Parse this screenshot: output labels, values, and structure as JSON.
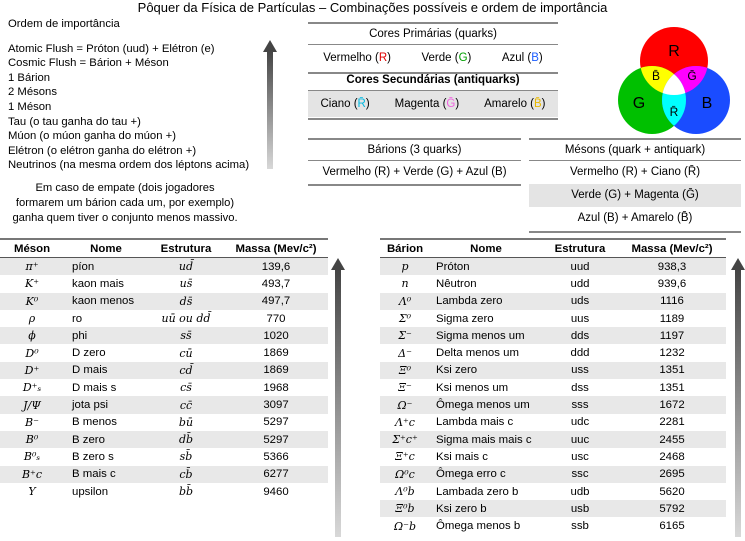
{
  "title": "Pôquer da Física de Partículas – Combinações possíveis e ordem de importância",
  "ranking": {
    "heading": "Ordem de importância",
    "items": [
      "Atomic Flush = Próton (uud) + Elétron (e)",
      "Cosmic Flush = Bárion + Méson",
      "1 Bárion",
      "2 Mésons",
      "1 Méson",
      "Tau (o tau ganha do tau +)",
      "Múon (o múon ganha do múon +)",
      "Elétron (o elétron ganha do elétron +)",
      "Neutrinos (na mesma ordem dos léptons acima)"
    ],
    "tie_note": "Em caso de empate (dois jogadores formarem um bárion cada um, por exemplo) ganha quem tiver o conjunto menos massivo."
  },
  "primary": {
    "title": "Cores Primárias (quarks)",
    "items": [
      {
        "name": "Vermelho",
        "code": "R"
      },
      {
        "name": "Verde",
        "code": "G"
      },
      {
        "name": "Azul",
        "code": "B"
      }
    ]
  },
  "secondary": {
    "title": "Cores Secundárias (antiquarks)",
    "items": [
      {
        "name": "Ciano",
        "code": "R̄"
      },
      {
        "name": "Magenta",
        "code": "Ḡ"
      },
      {
        "name": "Amarelo",
        "code": "B̄"
      }
    ]
  },
  "colors": {
    "red": "#ff0000",
    "green": "#00c000",
    "blue": "#1a4cff",
    "cyan": "#00ffff",
    "magenta": "#ff00ff",
    "yellow": "#ffff00"
  },
  "venn": {
    "r": "R",
    "g": "G",
    "b": "B",
    "rbar": "R̄",
    "gbar": "Ḡ",
    "bbar": "B̄"
  },
  "baryon_combo": {
    "title": "Bárions (3 quarks)",
    "combo": "Vermelho (R) + Verde (G) + Azul (B)"
  },
  "meson_combo": {
    "title": "Mésons (quark + antiquark)",
    "combos": [
      "Vermelho (R) + Ciano (R̄)",
      "Verde (G) + Magenta (Ḡ)",
      "Azul (B) + Amarelo (B̄)"
    ]
  },
  "mesons": {
    "headers": [
      "Méson",
      "Nome",
      "Estrutura",
      "Massa (Mev/c²)"
    ],
    "rows": [
      {
        "sym": "π⁺",
        "name": "píon",
        "str": "ud̄",
        "mass": "139,6"
      },
      {
        "sym": "K⁺",
        "name": "kaon mais",
        "str": "us̄",
        "mass": "493,7"
      },
      {
        "sym": "K⁰",
        "name": "kaon menos",
        "str": "ds̄",
        "mass": "497,7"
      },
      {
        "sym": "ρ",
        "name": "ro",
        "str": "uū ou dd̄",
        "mass": "770"
      },
      {
        "sym": "ϕ",
        "name": "phi",
        "str": "ss̄",
        "mass": "1020"
      },
      {
        "sym": "D⁰",
        "name": "D zero",
        "str": "cū",
        "mass": "1869"
      },
      {
        "sym": "D⁺",
        "name": "D mais",
        "str": "cd̄",
        "mass": "1869"
      },
      {
        "sym": "D⁺ₛ",
        "name": "D mais s",
        "str": "cs̄",
        "mass": "1968"
      },
      {
        "sym": "J/Ψ",
        "name": "jota psi",
        "str": "cc̄",
        "mass": "3097"
      },
      {
        "sym": "B⁻",
        "name": "B menos",
        "str": "bū",
        "mass": "5297"
      },
      {
        "sym": "B⁰",
        "name": "B zero",
        "str": "db̄",
        "mass": "5297"
      },
      {
        "sym": "B⁰ₛ",
        "name": "B zero s",
        "str": "sb̄",
        "mass": "5366"
      },
      {
        "sym": "B⁺c",
        "name": "B mais c",
        "str": "cb̄",
        "mass": "6277"
      },
      {
        "sym": "Υ",
        "name": "upsilon",
        "str": "bb̄",
        "mass": "9460"
      }
    ]
  },
  "baryons": {
    "headers": [
      "Bárion",
      "Nome",
      "Estrutura",
      "Massa (Mev/c²)"
    ],
    "rows": [
      {
        "sym": "p",
        "name": "Próton",
        "str": "uud",
        "mass": "938,3"
      },
      {
        "sym": "n",
        "name": "Nêutron",
        "str": "udd",
        "mass": "939,6"
      },
      {
        "sym": "Λ⁰",
        "name": "Lambda zero",
        "str": "uds",
        "mass": "1116"
      },
      {
        "sym": "Σ⁰",
        "name": "Sigma zero",
        "str": "uus",
        "mass": "1189"
      },
      {
        "sym": "Σ⁻",
        "name": "Sigma menos um",
        "str": "dds",
        "mass": "1197"
      },
      {
        "sym": "Δ⁻",
        "name": "Delta menos um",
        "str": "ddd",
        "mass": "1232"
      },
      {
        "sym": "Ξ⁰",
        "name": "Ksi zero",
        "str": "uss",
        "mass": "1351"
      },
      {
        "sym": "Ξ⁻",
        "name": "Ksi menos um",
        "str": "dss",
        "mass": "1351"
      },
      {
        "sym": "Ω⁻",
        "name": "Ômega menos um",
        "str": "sss",
        "mass": "1672"
      },
      {
        "sym": "Λ⁺c",
        "name": "Lambda mais c",
        "str": "udc",
        "mass": "2281"
      },
      {
        "sym": "Σ⁺c⁺",
        "name": "Sigma mais mais c",
        "str": "uuc",
        "mass": "2455"
      },
      {
        "sym": "Ξ⁺c",
        "name": "Ksi mais c",
        "str": "usc",
        "mass": "2468"
      },
      {
        "sym": "Ω⁰c",
        "name": "Ômega erro c",
        "str": "ssc",
        "mass": "2695"
      },
      {
        "sym": "Λ⁰b",
        "name": "Lambada zero b",
        "str": "udb",
        "mass": "5620"
      },
      {
        "sym": "Ξ⁰b",
        "name": "Ksi zero b",
        "str": "usb",
        "mass": "5792"
      },
      {
        "sym": "Ω⁻b",
        "name": "Ômega menos b",
        "str": "ssb",
        "mass": "6165"
      }
    ]
  }
}
